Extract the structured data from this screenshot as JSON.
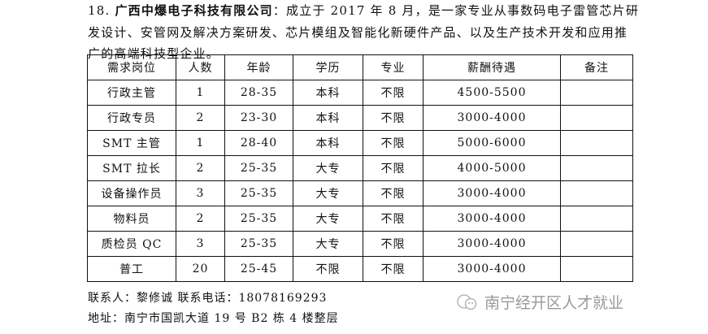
{
  "intro": {
    "number": "18.",
    "company": "广西中爆电子科技有限公司",
    "text": "：成立于 2017 年 8 月，是一家专业从事数码电子雷管芯片研发设计、安管网及解决方案研发、芯片模组及智能化新硬件产品、以及生产技术开发和应用推广的高端科技型企业。"
  },
  "table": {
    "headers": [
      "需求岗位",
      "人数",
      "年龄",
      "学历",
      "专业",
      "薪酬待遇",
      "备注"
    ],
    "rows": [
      [
        "行政主管",
        "1",
        "28-35",
        "本科",
        "不限",
        "4500-5500",
        ""
      ],
      [
        "行政专员",
        "2",
        "23-30",
        "本科",
        "不限",
        "3000-4000",
        ""
      ],
      [
        "SMT 主管",
        "1",
        "28-40",
        "本科",
        "不限",
        "5000-6000",
        ""
      ],
      [
        "SMT 拉长",
        "2",
        "25-35",
        "大专",
        "不限",
        "4000-5000",
        ""
      ],
      [
        "设备操作员",
        "3",
        "25-35",
        "大专",
        "不限",
        "3000-4000",
        ""
      ],
      [
        "物料员",
        "2",
        "25-35",
        "大专",
        "不限",
        "3000-4000",
        ""
      ],
      [
        "质检员 QC",
        "3",
        "25-35",
        "大专",
        "不限",
        "3000-4000",
        ""
      ],
      [
        "普工",
        "20",
        "25-45",
        "不限",
        "不限",
        "3000-4000",
        ""
      ]
    ]
  },
  "contact": {
    "line1": "联系人：黎修诚  联系电话：18078169293",
    "line2": "地址：南宁市国凯大道 19 号 B2 栋 4 楼整层"
  },
  "watermark": {
    "icon": "wechat-icon",
    "text": "南宁经开区人才就业"
  }
}
